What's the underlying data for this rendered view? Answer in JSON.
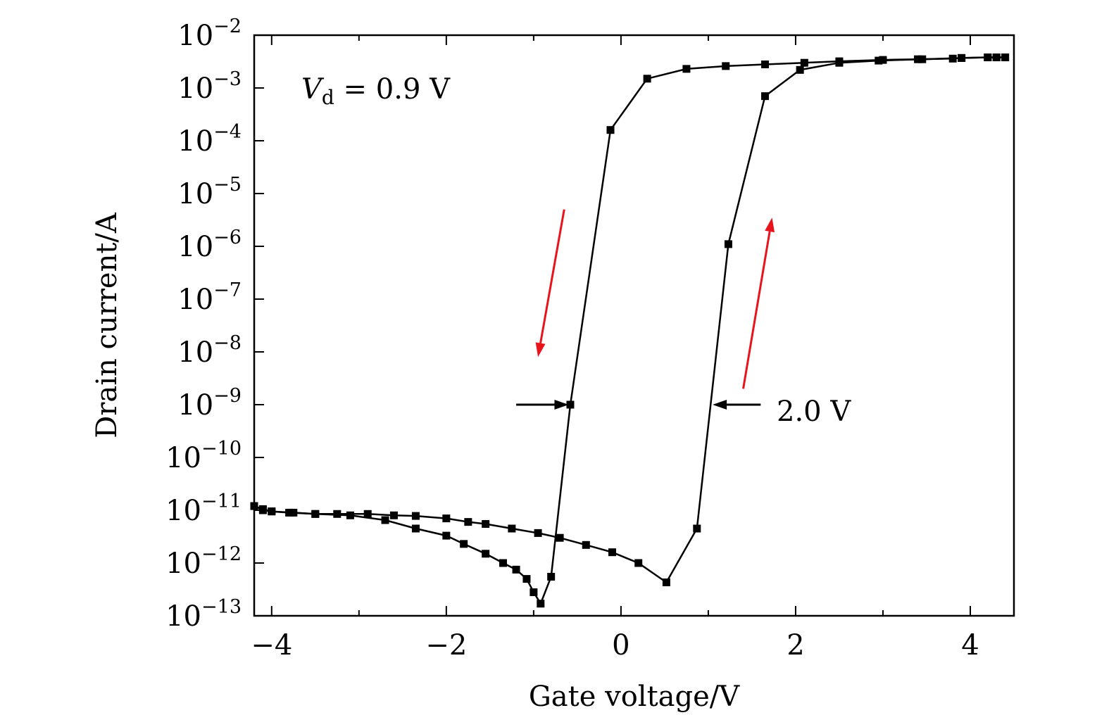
{
  "chart_data": {
    "type": "line",
    "xlabel": "Gate voltage/V",
    "ylabel": "Drain current/A",
    "xlim": [
      -4.2,
      4.5
    ],
    "ylim_log10": [
      -13,
      -2
    ],
    "yscale": "log",
    "grid": false,
    "x_ticks": [
      {
        "value": -4,
        "label": "−4"
      },
      {
        "value": -2,
        "label": "−2"
      },
      {
        "value": 0,
        "label": "0"
      },
      {
        "value": 2,
        "label": "2"
      },
      {
        "value": 4,
        "label": "4"
      }
    ],
    "y_ticks": [
      {
        "exp": -2,
        "base": "10",
        "sup": "−2"
      },
      {
        "exp": -3,
        "base": "10",
        "sup": "−3"
      },
      {
        "exp": -4,
        "base": "10",
        "sup": "−4"
      },
      {
        "exp": -5,
        "base": "10",
        "sup": "−5"
      },
      {
        "exp": -6,
        "base": "10",
        "sup": "−6"
      },
      {
        "exp": -7,
        "base": "10",
        "sup": "−7"
      },
      {
        "exp": -8,
        "base": "10",
        "sup": "−8"
      },
      {
        "exp": -9,
        "base": "10",
        "sup": "−9"
      },
      {
        "exp": -10,
        "base": "10",
        "sup": "−10"
      },
      {
        "exp": -11,
        "base": "10",
        "sup": "−11"
      },
      {
        "exp": -12,
        "base": "10",
        "sup": "−12"
      },
      {
        "exp": -13,
        "base": "10",
        "sup": "−13"
      }
    ],
    "series": [
      {
        "color": "#000000",
        "marker": "square",
        "points": [
          [
            4.4,
            0.0038
          ],
          [
            4.3,
            0.0038
          ],
          [
            4.2,
            0.0038
          ],
          [
            3.9,
            0.0037
          ],
          [
            3.8,
            0.0036
          ],
          [
            3.4,
            0.0035
          ],
          [
            3.0,
            0.0034
          ],
          [
            2.5,
            0.0032
          ],
          [
            2.1,
            0.003
          ],
          [
            1.65,
            0.0028
          ],
          [
            1.2,
            0.0026
          ],
          [
            0.75,
            0.0023
          ],
          [
            0.3,
            0.0015
          ],
          [
            -0.12,
            0.00016
          ],
          [
            -0.58,
            1e-09
          ],
          [
            -0.8,
            5.5e-13
          ],
          [
            -0.92,
            1.7e-13
          ],
          [
            -1.0,
            2.8e-13
          ],
          [
            -1.08,
            5e-13
          ],
          [
            -1.2,
            7.5e-13
          ],
          [
            -1.35,
            1e-12
          ],
          [
            -1.55,
            1.5e-12
          ],
          [
            -1.8,
            2.3e-12
          ],
          [
            -2.0,
            3.3e-12
          ],
          [
            -2.35,
            4.5e-12
          ],
          [
            -2.7,
            6.5e-12
          ],
          [
            -3.1,
            8e-12
          ],
          [
            -3.5,
            8.5e-12
          ],
          [
            -3.8,
            9e-12
          ],
          [
            -4.0,
            9.5e-12
          ],
          [
            -4.1,
            1.05e-11
          ],
          [
            -4.2,
            1.2e-11
          ]
        ]
      },
      {
        "color": "#000000",
        "marker": "square",
        "points": [
          [
            -4.2,
            1.2e-11
          ],
          [
            -4.1,
            1e-11
          ],
          [
            -4.0,
            9.5e-12
          ],
          [
            -3.75,
            9e-12
          ],
          [
            -3.5,
            8.5e-12
          ],
          [
            -3.25,
            8.5e-12
          ],
          [
            -2.9,
            8.5e-12
          ],
          [
            -2.6,
            8e-12
          ],
          [
            -2.35,
            7.8e-12
          ],
          [
            -2.0,
            7e-12
          ],
          [
            -1.75,
            6e-12
          ],
          [
            -1.55,
            5.5e-12
          ],
          [
            -1.25,
            4.5e-12
          ],
          [
            -0.95,
            3.7e-12
          ],
          [
            -0.7,
            3e-12
          ],
          [
            -0.4,
            2.2e-12
          ],
          [
            -0.1,
            1.6e-12
          ],
          [
            0.2,
            1e-12
          ],
          [
            0.52,
            4.3e-13
          ],
          [
            0.87,
            4.5e-12
          ],
          [
            1.23,
            1.1e-06
          ],
          [
            1.65,
            0.0007
          ],
          [
            2.05,
            0.0022
          ],
          [
            2.5,
            0.003
          ],
          [
            2.95,
            0.0033
          ],
          [
            3.45,
            0.0035
          ],
          [
            3.9,
            0.0037
          ],
          [
            4.2,
            0.0038
          ],
          [
            4.3,
            0.0038
          ],
          [
            4.4,
            0.0038
          ]
        ]
      }
    ],
    "annotations": {
      "vd_label": {
        "symbol": "V",
        "subscript": "d",
        "rest": " = 0.9 V"
      },
      "shift_label": "2.0 V"
    },
    "arrows": [
      {
        "color": "#e8141b",
        "from": [
          -0.65,
          5e-06
        ],
        "to": [
          -0.95,
          8e-09
        ]
      },
      {
        "color": "#e8141b",
        "from": [
          1.4,
          2e-09
        ],
        "to": [
          1.73,
          3.5e-06
        ]
      },
      {
        "color": "#000000",
        "from": [
          -1.2,
          1e-09
        ],
        "to": [
          -0.6,
          1e-09
        ]
      },
      {
        "color": "#000000",
        "from": [
          1.6,
          1e-09
        ],
        "to": [
          1.05,
          1e-09
        ]
      }
    ]
  }
}
